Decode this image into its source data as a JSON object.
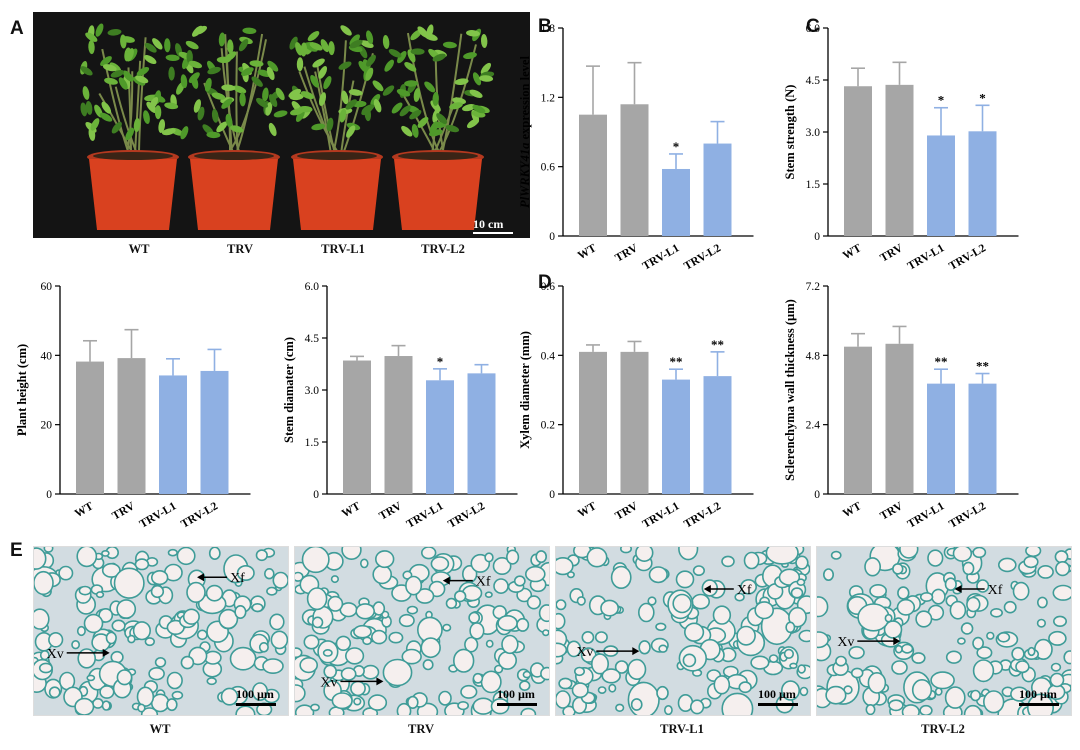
{
  "panel_letters": {
    "a": "A",
    "b": "B",
    "c": "C",
    "d": "D",
    "e": "E"
  },
  "colors": {
    "wt": "#a6a6a6",
    "trv": "#a6a6a6",
    "silenced": "#8fb0e3",
    "bg_photo": "#141414"
  },
  "photo_a": {
    "scale_label": "10 cm",
    "captions": [
      "WT",
      "TRV",
      "TRV-L1",
      "TRV-L2"
    ]
  },
  "chart_data": [
    {
      "id": "B",
      "type": "bar",
      "categories": [
        "WT",
        "TRV",
        "TRV-L1",
        "TRV-L2"
      ],
      "values": [
        1.05,
        1.14,
        0.58,
        0.8
      ],
      "errors": [
        0.42,
        0.36,
        0.13,
        0.19
      ],
      "significance": [
        "",
        "",
        "*",
        ""
      ],
      "ylabel_italic": "PlWRKY41a",
      "ylabel": " expression level",
      "ylim": [
        0,
        1.8
      ],
      "yticks": [
        "0",
        "0.6",
        "1.2",
        "1.8"
      ]
    },
    {
      "id": "C",
      "type": "bar",
      "categories": [
        "WT",
        "TRV",
        "TRV-L1",
        "TRV-L2"
      ],
      "values": [
        4.32,
        4.36,
        2.9,
        3.02
      ],
      "errors": [
        0.52,
        0.65,
        0.8,
        0.75
      ],
      "significance": [
        "",
        "",
        "*",
        "*"
      ],
      "ylabel": "Stem strength (N)",
      "ylim": [
        0,
        6.0
      ],
      "yticks": [
        "0",
        "1.5",
        "3.0",
        "4.5",
        "6.0"
      ]
    },
    {
      "id": "plant-height",
      "type": "bar",
      "categories": [
        "WT",
        "TRV",
        "TRV-L1",
        "TRV-L2"
      ],
      "values": [
        38.2,
        39.2,
        34.2,
        35.5
      ],
      "errors": [
        6.0,
        8.2,
        4.8,
        6.2
      ],
      "significance": [
        "",
        "",
        "",
        ""
      ],
      "ylabel": "Plant height (cm)",
      "ylim": [
        0,
        60
      ],
      "yticks": [
        "0",
        "20",
        "40",
        "60"
      ]
    },
    {
      "id": "stem-diameter",
      "type": "bar",
      "categories": [
        "WT",
        "TRV",
        "TRV-L1",
        "TRV-L2"
      ],
      "values": [
        3.85,
        3.98,
        3.28,
        3.48
      ],
      "errors": [
        0.12,
        0.3,
        0.33,
        0.25
      ],
      "significance": [
        "",
        "",
        "*",
        ""
      ],
      "ylabel": "Stem diamater (cm)",
      "ylim": [
        0,
        6.0
      ],
      "yticks": [
        "0",
        "1.5",
        "3.0",
        "4.5",
        "6.0"
      ]
    },
    {
      "id": "D",
      "type": "bar",
      "categories": [
        "WT",
        "TRV",
        "TRV-L1",
        "TRV-L2"
      ],
      "values": [
        0.41,
        0.41,
        0.33,
        0.34
      ],
      "errors": [
        0.02,
        0.03,
        0.03,
        0.07
      ],
      "significance": [
        "",
        "",
        "**",
        "**"
      ],
      "ylabel": "Xylem diameter (mm)",
      "ylim": [
        0,
        0.6
      ],
      "yticks": [
        "0",
        "0.2",
        "0.4",
        "0.6"
      ]
    },
    {
      "id": "sclerenchyma",
      "type": "bar",
      "categories": [
        "WT",
        "TRV",
        "TRV-L1",
        "TRV-L2"
      ],
      "values": [
        5.1,
        5.2,
        3.82,
        3.82
      ],
      "errors": [
        0.45,
        0.6,
        0.5,
        0.35
      ],
      "significance": [
        "",
        "",
        "**",
        "**"
      ],
      "ylabel": "Sclerenchyma wall thickness (µm)",
      "ylim": [
        0,
        7.2
      ],
      "yticks": [
        "0",
        "2.4",
        "4.8",
        "7.2"
      ]
    }
  ],
  "micrographs": [
    {
      "caption": "WT",
      "xf": "Xf",
      "xv": "Xv",
      "scale": "100 µm"
    },
    {
      "caption": "TRV",
      "xf": "Xf",
      "xv": "Xv",
      "scale": "100 µm"
    },
    {
      "caption": "TRV-L1",
      "xf": "Xf",
      "xv": "Xv",
      "scale": "100 µm"
    },
    {
      "caption": "TRV-L2",
      "xf": "Xf",
      "xv": "Xv",
      "scale": "100 µm"
    }
  ]
}
